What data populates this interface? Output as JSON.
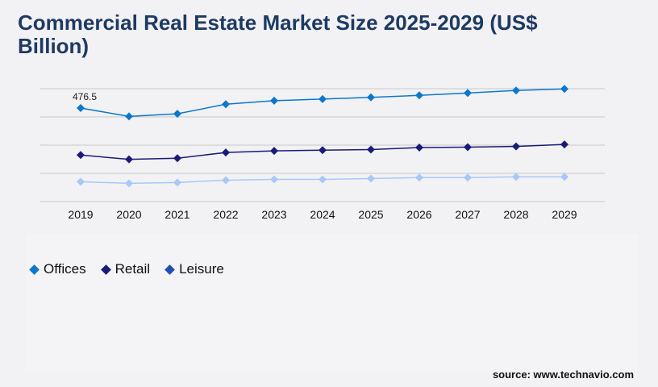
{
  "title": "Commercial Real Estate Market Size 2025-2029 (US$ Billion)",
  "source": "source: www.technavio.com",
  "chart_data": {
    "type": "line",
    "title": "Commercial Real Estate Market Size 2025-2029 (US$ Billion)",
    "xlabel": "",
    "ylabel": "",
    "categories": [
      "2019",
      "2020",
      "2021",
      "2022",
      "2023",
      "2024",
      "2025",
      "2026",
      "2027",
      "2028",
      "2029"
    ],
    "ylim": [
      0,
      575
    ],
    "grid": true,
    "legend": "bottom-left",
    "series": [
      {
        "name": "Offices",
        "color": "#0a78cc",
        "legend_color": "#0a78cc",
        "values": [
          476.5,
          434,
          447,
          496,
          514,
          522,
          531,
          541,
          553,
          566,
          574
        ]
      },
      {
        "name": "Retail",
        "color": "#1a1a78",
        "legend_color": "#1a1a78",
        "values": [
          237,
          215,
          221,
          250,
          258,
          262,
          265,
          275,
          277,
          281,
          291
        ]
      },
      {
        "name": "Leisure",
        "color": "#a8c8f8",
        "legend_color": "#1f4fb5",
        "values": [
          101,
          93,
          97,
          109,
          113,
          113,
          117,
          122,
          122,
          126,
          126
        ]
      }
    ],
    "annotations": [
      {
        "series": "Offices",
        "category": "2019",
        "text": "476.5"
      }
    ]
  }
}
